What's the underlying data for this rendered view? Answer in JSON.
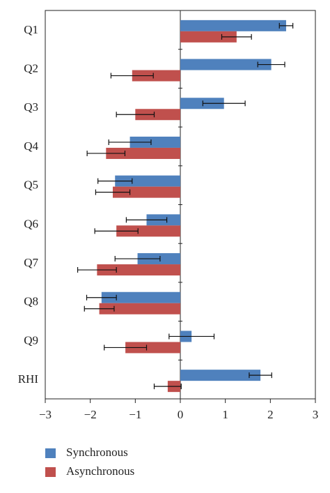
{
  "chart_data": {
    "type": "bar",
    "orientation": "horizontal",
    "categories": [
      "Q1",
      "Q2",
      "Q3",
      "Q4",
      "Q5",
      "Q6",
      "Q7",
      "Q8",
      "Q9",
      "RHI"
    ],
    "series": [
      {
        "name": "Synchronous",
        "color": "#4f81bd",
        "values": [
          2.35,
          2.02,
          0.97,
          -1.12,
          -1.45,
          -0.75,
          -0.95,
          -1.75,
          0.25,
          1.78
        ],
        "errors": [
          0.15,
          0.3,
          0.47,
          0.47,
          0.38,
          0.45,
          0.5,
          0.33,
          0.5,
          0.25
        ]
      },
      {
        "name": "Asynchronous",
        "color": "#c0504d",
        "values": [
          1.25,
          -1.07,
          -1.0,
          -1.65,
          -1.5,
          -1.42,
          -1.85,
          -1.8,
          -1.22,
          -0.28
        ],
        "errors": [
          0.33,
          0.47,
          0.42,
          0.42,
          0.38,
          0.48,
          0.43,
          0.33,
          0.47,
          0.3
        ]
      }
    ],
    "xlim": [
      -3,
      3
    ],
    "xticks": [
      {
        "value": -3,
        "label": "−3"
      },
      {
        "value": -2,
        "label": "−2"
      },
      {
        "value": -1,
        "label": "−1"
      },
      0,
      1,
      2,
      3
    ],
    "grid": false,
    "legend": "bottom-left"
  }
}
